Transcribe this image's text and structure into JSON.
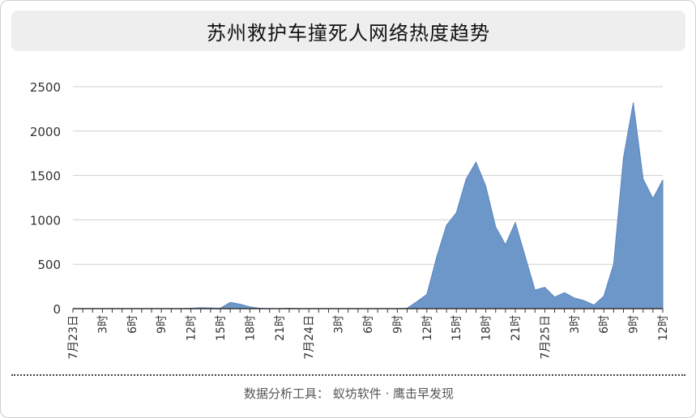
{
  "title": "苏州救护车撞死人网络热度趋势",
  "footer": "数据分析工具： 蚁坊软件 · 鹰击早发现",
  "colors": {
    "area": "#6e97c9",
    "area_stroke": "#5b86bd",
    "grid": "#cfcfcf",
    "axis": "#333333"
  },
  "chart_data": {
    "type": "area",
    "title": "苏州救护车撞死人网络热度趋势",
    "xlabel": "",
    "ylabel": "",
    "ylim": [
      0,
      2500
    ],
    "yticks": [
      0,
      500,
      1000,
      1500,
      2000,
      2500
    ],
    "grid": true,
    "x_start_index": 0,
    "x_tick_labels": [
      {
        "i": 0,
        "label": "7月23日"
      },
      {
        "i": 3,
        "label": "3时"
      },
      {
        "i": 6,
        "label": "6时"
      },
      {
        "i": 9,
        "label": "9时"
      },
      {
        "i": 12,
        "label": "12时"
      },
      {
        "i": 15,
        "label": "15时"
      },
      {
        "i": 18,
        "label": "18时"
      },
      {
        "i": 21,
        "label": "21时"
      },
      {
        "i": 24,
        "label": "7月24日"
      },
      {
        "i": 27,
        "label": "3时"
      },
      {
        "i": 30,
        "label": "6时"
      },
      {
        "i": 33,
        "label": "9时"
      },
      {
        "i": 36,
        "label": "12时"
      },
      {
        "i": 39,
        "label": "15时"
      },
      {
        "i": 42,
        "label": "18时"
      },
      {
        "i": 45,
        "label": "21时"
      },
      {
        "i": 48,
        "label": "7月25日"
      },
      {
        "i": 51,
        "label": "3时"
      },
      {
        "i": 54,
        "label": "6时"
      },
      {
        "i": 57,
        "label": "9时"
      },
      {
        "i": 60,
        "label": "12时"
      }
    ],
    "series": [
      {
        "values": [
          0,
          0,
          0,
          0,
          0,
          0,
          0,
          0,
          0,
          0,
          0,
          0,
          5,
          10,
          8,
          5,
          70,
          50,
          20,
          5,
          0,
          0,
          5,
          0,
          0,
          0,
          0,
          0,
          0,
          0,
          0,
          0,
          0,
          0,
          5,
          80,
          160,
          580,
          940,
          1080,
          1460,
          1650,
          1380,
          920,
          720,
          970,
          590,
          210,
          240,
          130,
          180,
          120,
          90,
          40,
          140,
          500,
          1700,
          2320,
          1460,
          1240,
          1450
        ]
      }
    ]
  }
}
